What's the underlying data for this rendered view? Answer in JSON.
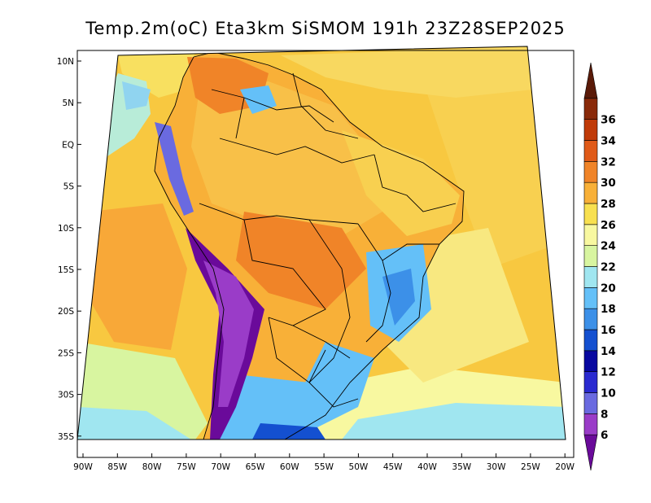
{
  "title": "Temp.2m(oC) Eta3km SiSMOM 191h 23Z28SEP2025",
  "map": {
    "region": "South America",
    "variable": "2 m air temperature",
    "units": "oC",
    "lat_labels": [
      "10N",
      "5N",
      "EQ",
      "5S",
      "10S",
      "15S",
      "20S",
      "25S",
      "30S",
      "35S"
    ],
    "lon_labels": [
      "90W",
      "85W",
      "80W",
      "75W",
      "70W",
      "65W",
      "60W",
      "55W",
      "50W",
      "45W",
      "40W",
      "35W",
      "30W",
      "25W",
      "20W"
    ]
  },
  "colorbar": {
    "labels": [
      "6",
      "8",
      "10",
      "12",
      "14",
      "16",
      "18",
      "20",
      "22",
      "24",
      "26",
      "28",
      "30",
      "32",
      "34",
      "36"
    ],
    "colors": [
      "#6a0a9a",
      "#9a3cc8",
      "#6a6ae0",
      "#2a2ad0",
      "#0808a0",
      "#1450d0",
      "#3c90e8",
      "#64c0f8",
      "#a0e6f0",
      "#d8f5a0",
      "#f8f8a0",
      "#f8e050",
      "#f8b038",
      "#f08428",
      "#e05a18",
      "#c03a08",
      "#8a2a0a",
      "#5a1a08"
    ]
  }
}
